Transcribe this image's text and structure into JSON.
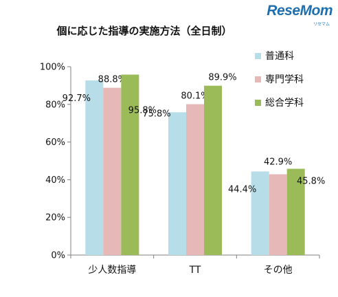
{
  "brand": {
    "name": "ReseMom",
    "sub": "リセマム"
  },
  "chart_data": {
    "type": "bar",
    "title": "個に応じた指導の実施方法（全日制）",
    "categories": [
      "少人数指導",
      "TT",
      "その他"
    ],
    "series": [
      {
        "name": "普通科",
        "color": "#b7dde8",
        "values": [
          92.7,
          75.8,
          44.4
        ],
        "labels": [
          "92.7%",
          "75.8%",
          "44.4%"
        ]
      },
      {
        "name": "専門学科",
        "color": "#e6b9b8",
        "values": [
          88.8,
          80.1,
          42.9
        ],
        "labels": [
          "88.8%",
          "80.1%",
          "42.9%"
        ]
      },
      {
        "name": "総合学科",
        "color": "#9bbb59",
        "values": [
          95.8,
          89.9,
          45.8
        ],
        "labels": [
          "95.8%",
          "89.9%",
          "45.8%"
        ]
      }
    ],
    "ylim": [
      0,
      100
    ],
    "yticks": [
      "0%",
      "20%",
      "40%",
      "60%",
      "80%",
      "100%"
    ],
    "grid": false,
    "legend_position": "top-right"
  }
}
